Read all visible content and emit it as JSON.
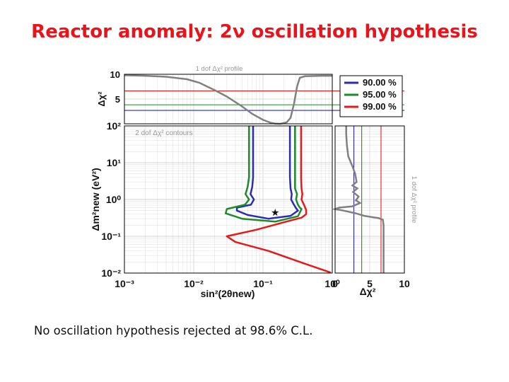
{
  "slide": {
    "title": "Reactor anomaly: 2ν oscillation hypothesis",
    "caption": "No oscillation hypothesis rejected at 98.6% C.L."
  },
  "chart_data": {
    "type": "line",
    "colors": {
      "c90": "#2b2bb8",
      "c95": "#1f8a2a",
      "c99": "#e51b1b",
      "profile": "#808080"
    },
    "legend": {
      "position": "top-right",
      "entries": [
        {
          "label": "90.00 %",
          "color": "#2b2bb8",
          "dchi2": 2.71
        },
        {
          "label": "95.00 %",
          "color": "#1f8a2a",
          "dchi2": 3.84
        },
        {
          "label": "99.00 %",
          "color": "#e51b1b",
          "dchi2": 6.63
        }
      ]
    },
    "top_panel": {
      "title": "1 dof Δχ² profile",
      "ylabel": "Δχ²",
      "yticks": [
        "5",
        "10"
      ],
      "ylim": [
        0,
        10
      ],
      "xlim": [
        0.001,
        1
      ],
      "xscale": "log",
      "profile": [
        [
          0.001,
          9.8
        ],
        [
          0.002,
          9.7
        ],
        [
          0.004,
          9.5
        ],
        [
          0.008,
          9.0
        ],
        [
          0.012,
          8.3
        ],
        [
          0.02,
          6.8
        ],
        [
          0.03,
          5.5
        ],
        [
          0.05,
          3.5
        ],
        [
          0.07,
          2.0
        ],
        [
          0.1,
          0.8
        ],
        [
          0.13,
          0.2
        ],
        [
          0.15,
          0.05
        ],
        [
          0.18,
          0.0
        ],
        [
          0.22,
          0.3
        ],
        [
          0.25,
          1.2
        ],
        [
          0.28,
          4.0
        ],
        [
          0.31,
          7.5
        ],
        [
          0.34,
          9.3
        ],
        [
          0.4,
          9.6
        ],
        [
          0.7,
          9.7
        ],
        [
          1.0,
          9.7
        ]
      ]
    },
    "main_panel": {
      "title": "2 dof Δχ² contours",
      "xlabel": "sin²(2θnew)",
      "ylabel": "Δm²new (eV²)",
      "xscale": "log",
      "yscale": "log",
      "xlim": [
        0.001,
        1
      ],
      "ylim": [
        0.01,
        100
      ],
      "xticks": [
        "10⁻³",
        "10⁻²",
        "10⁻¹",
        "10⁰"
      ],
      "yticks": [
        "10⁻²",
        "10⁻¹",
        "10⁰",
        "10¹",
        "10²"
      ],
      "best_fit": {
        "x": 0.15,
        "y": 0.44,
        "marker": "★"
      },
      "series": [
        {
          "color_key": "c90",
          "left": [
            [
              0.072,
              100
            ],
            [
              0.072,
              12
            ],
            [
              0.072,
              4
            ],
            [
              0.07,
              2.2
            ],
            [
              0.066,
              1.4
            ],
            [
              0.074,
              1.0
            ],
            [
              0.067,
              0.72
            ],
            [
              0.042,
              0.6
            ],
            [
              0.042,
              0.5
            ],
            [
              0.06,
              0.38
            ],
            [
              0.12,
              0.3
            ],
            [
              0.25,
              0.36
            ],
            [
              0.32,
              0.5
            ]
          ],
          "right": [
            [
              0.245,
              100
            ],
            [
              0.245,
              12
            ],
            [
              0.245,
              4
            ],
            [
              0.25,
              2.0
            ],
            [
              0.26,
              1.4
            ],
            [
              0.255,
              1.0
            ],
            [
              0.28,
              0.72
            ],
            [
              0.3,
              0.58
            ],
            [
              0.32,
              0.5
            ]
          ]
        },
        {
          "color_key": "c95",
          "left": [
            [
              0.063,
              100
            ],
            [
              0.063,
              12
            ],
            [
              0.063,
              4
            ],
            [
              0.06,
              2.2
            ],
            [
              0.056,
              1.4
            ],
            [
              0.063,
              1.0
            ],
            [
              0.055,
              0.72
            ],
            [
              0.03,
              0.55
            ],
            [
              0.029,
              0.42
            ],
            [
              0.05,
              0.3
            ],
            [
              0.15,
              0.25
            ],
            [
              0.32,
              0.35
            ],
            [
              0.36,
              0.55
            ]
          ],
          "right": [
            [
              0.29,
              100
            ],
            [
              0.29,
              12
            ],
            [
              0.29,
              4
            ],
            [
              0.29,
              2.0
            ],
            [
              0.31,
              1.4
            ],
            [
              0.3,
              1.0
            ],
            [
              0.32,
              0.72
            ],
            [
              0.34,
              0.6
            ],
            [
              0.36,
              0.55
            ]
          ]
        },
        {
          "color_key": "c99",
          "left": [
            [
              0.355,
              100
            ],
            [
              0.355,
              12
            ],
            [
              0.355,
              4
            ],
            [
              0.36,
              2.0
            ],
            [
              0.37,
              1.4
            ],
            [
              0.36,
              1.0
            ],
            [
              0.39,
              0.72
            ],
            [
              0.42,
              0.52
            ],
            [
              0.42,
              0.4
            ],
            [
              0.36,
              0.32
            ],
            [
              0.2,
              0.24
            ],
            [
              0.08,
              0.15
            ],
            [
              0.03,
              0.1
            ],
            [
              0.04,
              0.07
            ],
            [
              0.12,
              0.04
            ],
            [
              0.4,
              0.018
            ],
            [
              0.95,
              0.0103
            ]
          ],
          "right": []
        }
      ]
    },
    "right_panel": {
      "title": "1 dof Δχ² profile",
      "xlabel": "Δχ²",
      "xticks": [
        "0",
        "5",
        "10"
      ],
      "xlim": [
        0,
        10
      ],
      "profile": [
        [
          1.6,
          100
        ],
        [
          1.6,
          60
        ],
        [
          1.7,
          30
        ],
        [
          1.9,
          15
        ],
        [
          2.5,
          8
        ],
        [
          2.9,
          5
        ],
        [
          3.1,
          3.0
        ],
        [
          2.5,
          2.4
        ],
        [
          3.2,
          2.0
        ],
        [
          2.6,
          1.6
        ],
        [
          3.4,
          1.2
        ],
        [
          3.0,
          0.95
        ],
        [
          3.6,
          0.8
        ],
        [
          2.5,
          0.65
        ],
        [
          0.6,
          0.6
        ],
        [
          0.0,
          0.55
        ],
        [
          1.2,
          0.5
        ],
        [
          3.0,
          0.42
        ],
        [
          4.2,
          0.36
        ],
        [
          5.4,
          0.33
        ],
        [
          6.3,
          0.31
        ],
        [
          6.9,
          0.28
        ],
        [
          7.0,
          0.2
        ],
        [
          7.0,
          0.1
        ],
        [
          7.0,
          0.05
        ],
        [
          7.0,
          0.01
        ]
      ]
    }
  }
}
